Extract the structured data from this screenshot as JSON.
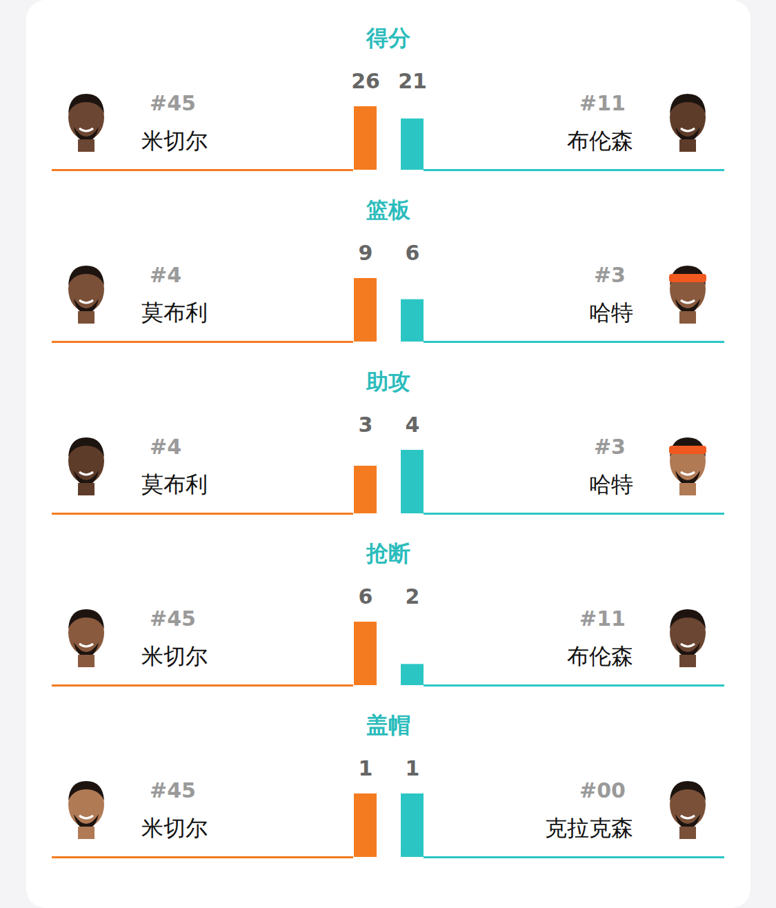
{
  "chart_data": [
    {
      "type": "bar",
      "title": "得分",
      "categories": [
        "米切尔",
        "布伦森"
      ],
      "annotations": [
        "#45",
        "#11"
      ],
      "values": [
        26,
        21
      ],
      "colors": [
        "#f47b20",
        "#2bc6c4"
      ],
      "ylim": [
        0,
        26
      ],
      "data_labels": true,
      "tick_labels": false
    },
    {
      "type": "bar",
      "title": "篮板",
      "categories": [
        "莫布利",
        "哈特"
      ],
      "annotations": [
        "#4",
        "#3"
      ],
      "values": [
        9,
        6
      ],
      "colors": [
        "#f47b20",
        "#2bc6c4"
      ],
      "ylim": [
        0,
        9
      ],
      "data_labels": true,
      "tick_labels": false
    },
    {
      "type": "bar",
      "title": "助攻",
      "categories": [
        "莫布利",
        "哈特"
      ],
      "annotations": [
        "#4",
        "#3"
      ],
      "values": [
        3,
        4
      ],
      "colors": [
        "#f47b20",
        "#2bc6c4"
      ],
      "ylim": [
        0,
        4
      ],
      "data_labels": true,
      "tick_labels": false
    },
    {
      "type": "bar",
      "title": "抢断",
      "categories": [
        "米切尔",
        "布伦森"
      ],
      "annotations": [
        "#45",
        "#11"
      ],
      "values": [
        6,
        2
      ],
      "colors": [
        "#f47b20",
        "#2bc6c4"
      ],
      "ylim": [
        0,
        6
      ],
      "data_labels": true,
      "tick_labels": false
    },
    {
      "type": "bar",
      "title": "盖帽",
      "categories": [
        "米切尔",
        "克拉克森"
      ],
      "annotations": [
        "#45",
        "#00"
      ],
      "values": [
        1,
        1
      ],
      "colors": [
        "#f47b20",
        "#2bc6c4"
      ],
      "ylim": [
        0,
        1
      ],
      "data_labels": true,
      "tick_labels": false
    }
  ]
}
